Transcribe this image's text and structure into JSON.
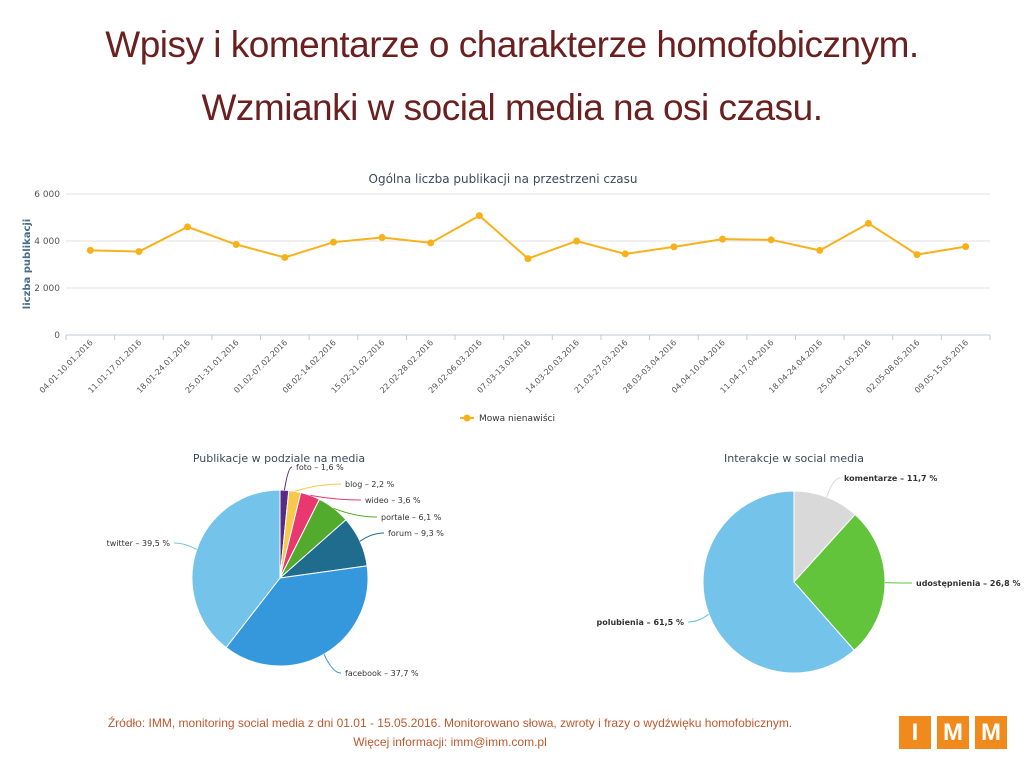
{
  "header": {
    "line1": "Wpisy i komentarze o charakterze homofobicznym.",
    "line2": "Wzmianki w social media na osi czasu."
  },
  "colors": {
    "title": "#6b1f1f",
    "line": "#f7b21b",
    "footer": "#c0582f",
    "logo": "#f08a1c"
  },
  "chart_data": [
    {
      "type": "line",
      "title": "Ogólna liczba publikacji na przestrzeni czasu",
      "ylabel": "liczba publikacji",
      "xlabel": "",
      "ylim": [
        0,
        6000
      ],
      "yticks": [
        "0",
        "2 000",
        "4 000",
        "6 000"
      ],
      "grid": true,
      "legend_position": "bottom-center",
      "categories": [
        "04.01-10.01.2016",
        "11.01-17.01.2016",
        "18.01-24.01.2016",
        "25.01-31.01.2016",
        "01.02-07.02.2016",
        "08.02-14.02.2016",
        "15.02-21.02.2016",
        "22.02-28.02.2016",
        "29.02-06.03.2016",
        "07.03-13.03.2016",
        "14.03-20.03.2016",
        "21.03-27.03.2016",
        "28.03-03.04.2016",
        "04.04-10.04.2016",
        "11.04-17.04.2016",
        "18.04-24.04.2016",
        "25.04-01.05.2016",
        "02.05-08.05.2016",
        "09.05-15.05.2016"
      ],
      "series": [
        {
          "name": "Mowa nienawiści",
          "values": [
            3600,
            3550,
            4600,
            3850,
            3300,
            3950,
            4150,
            3920,
            5080,
            3250,
            4000,
            3450,
            3750,
            4080,
            4050,
            3600,
            4750,
            3420,
            3760
          ]
        }
      ]
    },
    {
      "type": "pie",
      "title": "Publikacje w podziale na media",
      "slices": [
        {
          "label": "foto",
          "value": "1,6",
          "pct": 1.6,
          "color": "#5b2a86"
        },
        {
          "label": "blog",
          "value": "2,2",
          "pct": 2.2,
          "color": "#f7c94b"
        },
        {
          "label": "wideo",
          "value": "3,6",
          "pct": 3.6,
          "color": "#e8386f"
        },
        {
          "label": "portale",
          "value": "6,1",
          "pct": 6.1,
          "color": "#52ab2d"
        },
        {
          "label": "forum",
          "value": "9,3",
          "pct": 9.3,
          "color": "#1f6c8f"
        },
        {
          "label": "facebook",
          "value": "37,7",
          "pct": 37.7,
          "color": "#3598dc"
        },
        {
          "label": "twitter",
          "value": "39,5",
          "pct": 39.5,
          "color": "#74c3ea"
        }
      ]
    },
    {
      "type": "pie",
      "title": "Interakcje w social media",
      "slices": [
        {
          "label": "komentarze",
          "value": "11,7",
          "pct": 11.7,
          "color": "#d9d9d9"
        },
        {
          "label": "udostępnienia",
          "value": "26,8",
          "pct": 26.8,
          "color": "#61c43a"
        },
        {
          "label": "polubienia",
          "value": "61,5",
          "pct": 61.5,
          "color": "#74c3ea"
        }
      ]
    }
  ],
  "footer": {
    "source": "Źródło: IMM, monitoring social media z dni 01.01 - 15.05.2016. Monitorowano słowa, zwroty i frazy o wydźwięku homofobicznym.",
    "contact": "Więcej informacji: imm@imm.com.pl"
  },
  "logo": {
    "letters": [
      "I",
      "M",
      "M"
    ]
  }
}
